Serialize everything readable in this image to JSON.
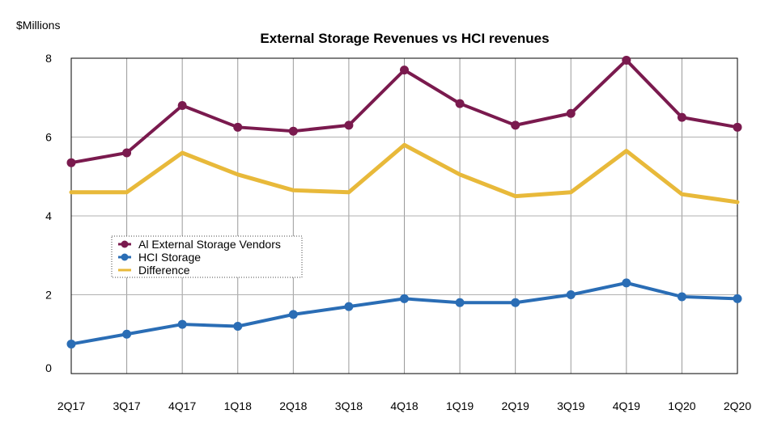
{
  "chart_data": {
    "type": "line",
    "title": "External Storage Revenues vs HCI revenues",
    "ylabel": "$Millions",
    "xlabel": "",
    "categories": [
      "2Q17",
      "3Q17",
      "4Q17",
      "1Q18",
      "2Q18",
      "3Q18",
      "4Q18",
      "1Q19",
      "2Q19",
      "3Q19",
      "4Q19",
      "1Q20",
      "2Q20"
    ],
    "ylim": [
      0,
      8
    ],
    "yticks": [
      0,
      2,
      4,
      6,
      8
    ],
    "grid": true,
    "legend_position": "middle-left",
    "series": [
      {
        "name": "Al External Storage Vendors",
        "color": "#7a1a4e",
        "markers": true,
        "values": [
          5.35,
          5.6,
          6.8,
          6.25,
          6.15,
          6.3,
          7.7,
          6.85,
          6.3,
          6.6,
          7.95,
          6.5,
          6.25
        ]
      },
      {
        "name": "HCI Storage",
        "color": "#2a6db5",
        "markers": true,
        "values": [
          0.75,
          1.0,
          1.25,
          1.2,
          1.5,
          1.7,
          1.9,
          1.8,
          1.8,
          2.0,
          2.3,
          1.95,
          1.9
        ]
      },
      {
        "name": "Difference",
        "color": "#e8b93a",
        "markers": false,
        "values": [
          4.6,
          4.6,
          5.6,
          5.05,
          4.65,
          4.6,
          5.8,
          5.05,
          4.5,
          4.6,
          5.65,
          4.55,
          4.35
        ]
      }
    ]
  }
}
